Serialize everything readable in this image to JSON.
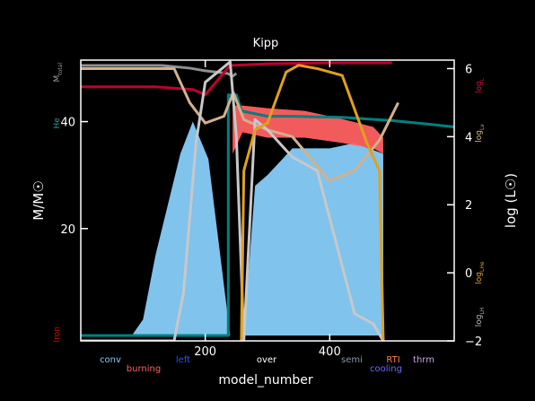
{
  "chart_data": {
    "type": "line",
    "title": "Kipp",
    "xlabel": "model_number",
    "ylabel_left": "M/M☉",
    "ylabel_right": "log (L☉)",
    "xlim": [
      0,
      600
    ],
    "ylim_left": [
      -1,
      51.5
    ],
    "ylim_right": [
      -2,
      6.25
    ],
    "x_ticks": [
      200,
      400
    ],
    "x_tick_labels": [
      "200",
      "400"
    ],
    "y_left_ticks": [
      20,
      40
    ],
    "y_left_tick_labels": [
      "20",
      "40"
    ],
    "y_right_ticks": [
      -2,
      0,
      2,
      4,
      6
    ],
    "y_right_tick_labels": [
      "−2",
      "0",
      "2",
      "4",
      "6"
    ],
    "left_axis_tags": [
      {
        "text": "M",
        "sub": "total",
        "color": "#9a9a9a",
        "y": 49.2
      },
      {
        "text": "He",
        "sub": "",
        "color": "#2aa198",
        "y": 39.7
      },
      {
        "text": "Iron",
        "sub": "",
        "color": "#d01010",
        "y": 0.2
      }
    ],
    "right_axis_tags": [
      {
        "text": "log",
        "sub": "L",
        "color": "#d01040",
        "y": 5.5
      },
      {
        "text": "log",
        "sub": "Lν",
        "color": "#d2b48c",
        "y": 4.1
      },
      {
        "text": "log",
        "sub": "LHe",
        "color": "#e0a020",
        "y": 0.0
      },
      {
        "text": "log",
        "sub": "LH",
        "color": "#bbbbbb",
        "y": -1.3
      }
    ],
    "legend": [
      {
        "label": "conv",
        "color": "#87cefa"
      },
      {
        "label": "burning",
        "color": "#ff6060"
      },
      {
        "label": "left",
        "color": "#2255ff"
      },
      {
        "label": "over",
        "color": "#ffffff"
      },
      {
        "label": "semi",
        "color": "#8899aa"
      },
      {
        "label": "RTI",
        "color": "#ff7f50"
      },
      {
        "label": "cooling",
        "color": "#6a6aff"
      },
      {
        "label": "thrm",
        "color": "#c8a2e0"
      }
    ],
    "regions": [
      {
        "kind": "convection",
        "color": "#87cefa",
        "x": [
          82,
          100,
          120,
          160,
          180,
          205,
          240,
          262,
          280,
          300,
          340,
          400,
          440,
          486,
          486
        ],
        "top": [
          0,
          3,
          15,
          34,
          40,
          33,
          0,
          0,
          28,
          30,
          35,
          35,
          36,
          34,
          0
        ],
        "bottom": [
          0,
          0,
          0,
          0,
          0,
          0,
          0,
          0,
          0,
          0,
          0,
          0,
          0,
          0,
          0
        ]
      },
      {
        "kind": "burning",
        "color": "#ff6060",
        "x": [
          244,
          260,
          300,
          360,
          420,
          470,
          486
        ],
        "top": [
          43,
          43,
          42.5,
          42,
          40.5,
          39,
          37
        ],
        "bottom": [
          34,
          38,
          37,
          37,
          36,
          35,
          34
        ]
      }
    ],
    "series": [
      {
        "name": "M",
        "axis": "left",
        "color": "#909090",
        "x": [
          0,
          130,
          175,
          200,
          236,
          244,
          250
        ],
        "y": [
          50.5,
          50.5,
          50,
          49.5,
          49,
          48.5,
          49
        ]
      },
      {
        "name": "He",
        "axis": "left",
        "color": "#008080",
        "x": [
          0,
          237,
          237,
          250,
          258,
          300,
          340,
          380,
          420,
          460,
          500,
          560,
          600
        ],
        "y": [
          0,
          0,
          45,
          45,
          42,
          41,
          41,
          40.9,
          40.8,
          40.5,
          40.2,
          39.5,
          39
        ]
      },
      {
        "name": "Iron",
        "axis": "left",
        "color": "#c00030",
        "x": [
          0,
          120,
          180,
          200,
          240,
          300,
          400,
          500
        ],
        "y": [
          46.5,
          46.5,
          46,
          45,
          50.5,
          50.8,
          51,
          51
        ]
      },
      {
        "name": "log L",
        "axis": "right",
        "color": "#d3b08c",
        "x": [
          0,
          150,
          175,
          200,
          230,
          245,
          262,
          300,
          340,
          400,
          440,
          480,
          510
        ],
        "y": [
          6,
          6,
          5,
          4.4,
          4.6,
          5.3,
          4.5,
          4.2,
          4.0,
          2.7,
          3.0,
          3.9,
          5.0
        ]
      },
      {
        "name": "log LH",
        "axis": "right",
        "color": "#c8c8c8",
        "x": [
          0,
          150,
          165,
          185,
          200,
          240,
          250,
          262,
          280,
          300,
          340,
          380,
          420,
          440,
          470,
          486
        ],
        "y": [
          -2,
          -2,
          -0.6,
          3.8,
          5.6,
          6.2,
          4.0,
          -2,
          4.5,
          4.2,
          3.4,
          3.0,
          0.2,
          -1.2,
          -1.5,
          -2
        ]
      },
      {
        "name": "log LHe",
        "axis": "right",
        "color": "#e0a020",
        "x": [
          258,
          262,
          280,
          300,
          330,
          350,
          380,
          420,
          460,
          480,
          486
        ],
        "y": [
          -2,
          3.0,
          4.2,
          4.4,
          5.9,
          6.1,
          6.0,
          5.8,
          3.8,
          3.0,
          -2
        ]
      }
    ]
  }
}
